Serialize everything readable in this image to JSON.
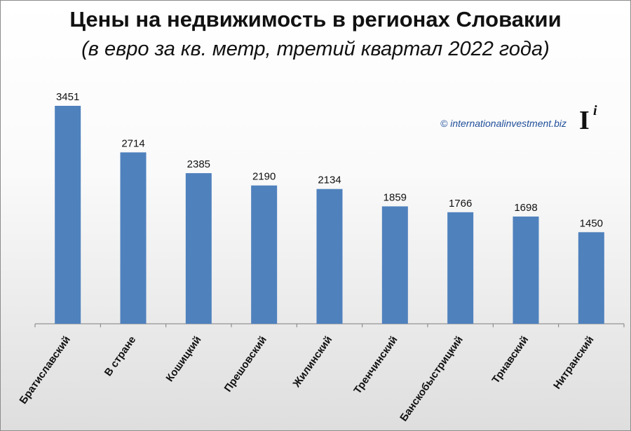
{
  "title": "Цены на недвижимость в регионах Словакии",
  "subtitle": "(в евро за кв. метр, третий квартал 2022 года)",
  "source": "© internationalinvestment.biz",
  "logo": {
    "letter": "I",
    "sup": "i"
  },
  "colors": {
    "bar": "#4f81bd",
    "axis": "#7f7f7f"
  },
  "chart_data": {
    "type": "bar",
    "categories": [
      "Братиславский",
      "В стране",
      "Кошицкий",
      "Прешовский",
      "Жилинский",
      "Тренчинский",
      "Банскобыстрицкий",
      "Трнавский",
      "Нитранский"
    ],
    "values": [
      3451,
      2714,
      2385,
      2190,
      2134,
      1859,
      1766,
      1698,
      1450
    ],
    "title": "Цены на недвижимость в регионах Словакии",
    "subtitle": "(в евро за кв. метр, третий квартал 2022 года)",
    "ylim": [
      0,
      3451
    ],
    "grid": false,
    "data_labels": true
  }
}
